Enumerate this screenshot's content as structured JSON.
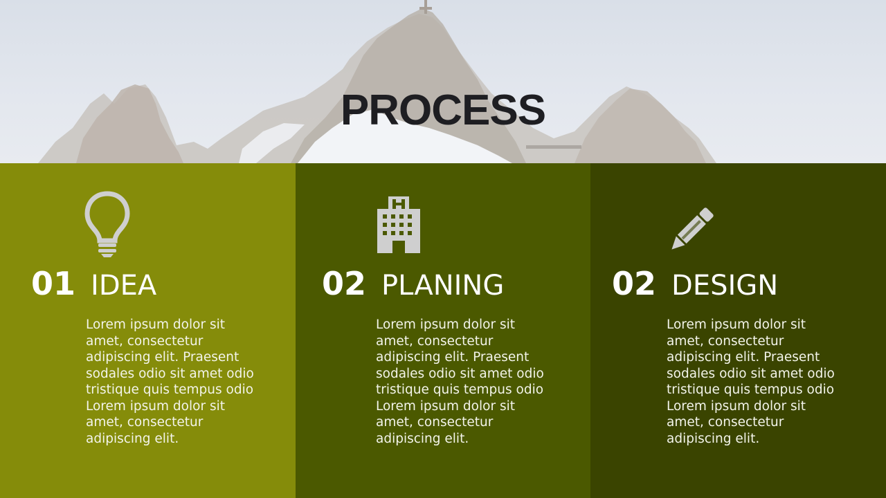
{
  "slide": {
    "title": "PROCESS"
  },
  "colors": {
    "panel_1": "#858c0a",
    "panel_2": "#4b5900",
    "panel_3": "#3a4400",
    "icon": "#cfcfcf"
  },
  "steps": [
    {
      "number": "01",
      "label": "IDEA",
      "icon": "lightbulb-icon",
      "text": "Lorem ipsum dolor sit amet, consectetur adipiscing elit. Praesent sodales odio sit amet odio tristique quis tempus odio Lorem ipsum dolor sit amet, consectetur adipiscing elit."
    },
    {
      "number": "02",
      "label": "PLANING",
      "icon": "hospital-building-icon",
      "text": "Lorem ipsum dolor sit amet, consectetur adipiscing elit. Praesent sodales odio sit amet odio tristique quis tempus odio Lorem ipsum dolor sit amet, consectetur adipiscing elit."
    },
    {
      "number": "02",
      "label": "DESIGN",
      "icon": "pencil-icon",
      "text": "Lorem ipsum dolor sit amet, consectetur adipiscing elit. Praesent sodales odio sit amet odio tristique quis tempus odio Lorem ipsum dolor sit amet, consectetur adipiscing elit."
    }
  ]
}
